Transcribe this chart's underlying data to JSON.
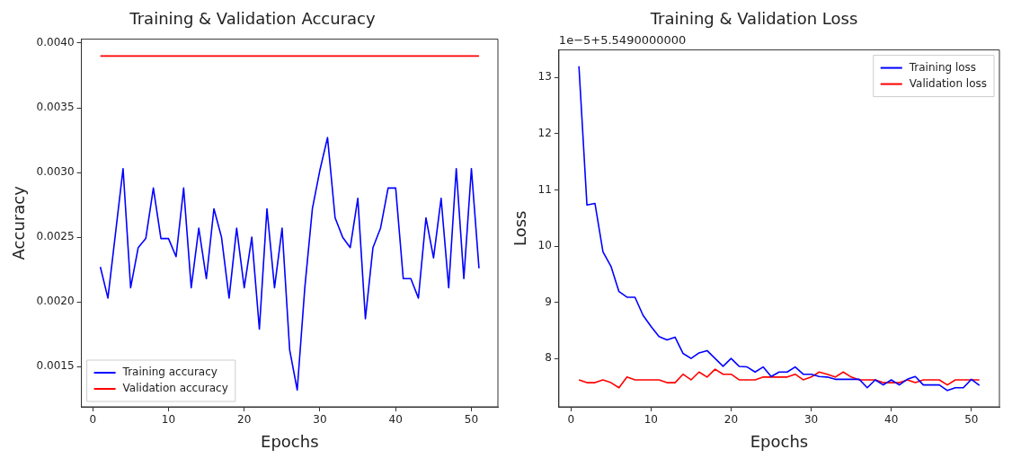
{
  "chart_data": [
    {
      "type": "line",
      "title": "Training & Validation Accuracy",
      "xlabel": "Epochs",
      "ylabel": "Accuracy",
      "x": [
        1,
        2,
        3,
        4,
        5,
        6,
        7,
        8,
        9,
        10,
        11,
        12,
        13,
        14,
        15,
        16,
        17,
        18,
        19,
        20,
        21,
        22,
        23,
        24,
        25,
        26,
        27,
        28,
        29,
        30,
        31,
        32,
        33,
        34,
        35,
        36,
        37,
        38,
        39,
        40,
        41,
        42,
        43,
        44,
        45,
        46,
        47,
        48,
        49,
        50,
        51
      ],
      "series": [
        {
          "name": "Training accuracy",
          "color": "#0000ff",
          "values": [
            0.00227,
            0.00203,
            0.00253,
            0.00303,
            0.00211,
            0.00242,
            0.00249,
            0.00288,
            0.00249,
            0.00249,
            0.00235,
            0.00288,
            0.00211,
            0.00257,
            0.00218,
            0.00272,
            0.0025,
            0.00203,
            0.00257,
            0.00211,
            0.0025,
            0.00179,
            0.00272,
            0.00211,
            0.00257,
            0.00163,
            0.00132,
            0.00211,
            0.00272,
            0.00302,
            0.00327,
            0.00265,
            0.0025,
            0.00242,
            0.0028,
            0.00187,
            0.00242,
            0.00257,
            0.00288,
            0.00288,
            0.00218,
            0.00218,
            0.00203,
            0.00265,
            0.00234,
            0.0028,
            0.00211,
            0.00303,
            0.00218,
            0.00303,
            0.00226
          ]
        },
        {
          "name": "Validation accuracy",
          "color": "#ff0000",
          "values": [
            0.0039,
            0.0039,
            0.0039,
            0.0039,
            0.0039,
            0.0039,
            0.0039,
            0.0039,
            0.0039,
            0.0039,
            0.0039,
            0.0039,
            0.0039,
            0.0039,
            0.0039,
            0.0039,
            0.0039,
            0.0039,
            0.0039,
            0.0039,
            0.0039,
            0.0039,
            0.0039,
            0.0039,
            0.0039,
            0.0039,
            0.0039,
            0.0039,
            0.0039,
            0.0039,
            0.0039,
            0.0039,
            0.0039,
            0.0039,
            0.0039,
            0.0039,
            0.0039,
            0.0039,
            0.0039,
            0.0039,
            0.0039,
            0.0039,
            0.0039,
            0.0039,
            0.0039,
            0.0039,
            0.0039,
            0.0039,
            0.0039,
            0.0039,
            0.0039
          ]
        }
      ],
      "xlim": [
        -1.5,
        53.5
      ],
      "xticks": [
        0,
        10,
        20,
        30,
        40,
        50
      ],
      "ylim": [
        0.00119,
        0.00403
      ],
      "yticks": [
        0.0015,
        {
          "value": 0.002,
          "label": "0.0020"
        },
        0.0025,
        {
          "value": 0.003,
          "label": "0.0030"
        },
        0.0035,
        {
          "value": 0.004,
          "label": "0.0040"
        }
      ],
      "legend": "bottom left",
      "marker": "none",
      "line_style": "solid"
    },
    {
      "type": "line",
      "title": "Training & Validation Loss",
      "xlabel": "Epochs",
      "ylabel": "Loss",
      "annotations": [
        "1e−5+5.5490000000"
      ],
      "x": [
        1,
        2,
        3,
        4,
        5,
        6,
        7,
        8,
        9,
        10,
        11,
        12,
        13,
        14,
        15,
        16,
        17,
        18,
        19,
        20,
        21,
        22,
        23,
        24,
        25,
        26,
        27,
        28,
        29,
        30,
        31,
        32,
        33,
        34,
        35,
        36,
        37,
        38,
        39,
        40,
        41,
        42,
        43,
        44,
        45,
        46,
        47,
        48,
        49,
        50,
        51
      ],
      "series": [
        {
          "name": "Training loss",
          "color": "#0000ff",
          "values": [
            13.2,
            10.73,
            10.76,
            9.9,
            9.64,
            9.19,
            9.09,
            9.09,
            8.77,
            8.57,
            8.39,
            8.33,
            8.38,
            8.09,
            8.0,
            8.1,
            8.14,
            8.0,
            7.86,
            8.0,
            7.86,
            7.85,
            7.76,
            7.85,
            7.68,
            7.76,
            7.76,
            7.85,
            7.72,
            7.72,
            7.68,
            7.67,
            7.63,
            7.63,
            7.63,
            7.63,
            7.48,
            7.62,
            7.53,
            7.62,
            7.53,
            7.63,
            7.68,
            7.53,
            7.53,
            7.53,
            7.43,
            7.48,
            7.48,
            7.63,
            7.52
          ]
        },
        {
          "name": "Validation loss",
          "color": "#ff0000",
          "values": [
            7.62,
            7.57,
            7.57,
            7.62,
            7.57,
            7.48,
            7.67,
            7.62,
            7.62,
            7.62,
            7.62,
            7.57,
            7.57,
            7.72,
            7.62,
            7.76,
            7.67,
            7.81,
            7.72,
            7.72,
            7.62,
            7.62,
            7.62,
            7.67,
            7.67,
            7.67,
            7.67,
            7.72,
            7.62,
            7.67,
            7.76,
            7.72,
            7.67,
            7.76,
            7.67,
            7.62,
            7.62,
            7.62,
            7.57,
            7.57,
            7.57,
            7.62,
            7.57,
            7.62,
            7.62,
            7.62,
            7.53,
            7.62,
            7.62,
            7.62,
            7.62
          ]
        }
      ],
      "xlim": [
        -1.5,
        53.5
      ],
      "xticks": [
        0,
        10,
        20,
        30,
        40,
        50
      ],
      "ylim": [
        7.14,
        13.49
      ],
      "yticks": [
        8,
        9,
        10,
        11,
        12,
        13
      ],
      "legend": "top right",
      "marker": "none",
      "line_style": "solid"
    }
  ]
}
